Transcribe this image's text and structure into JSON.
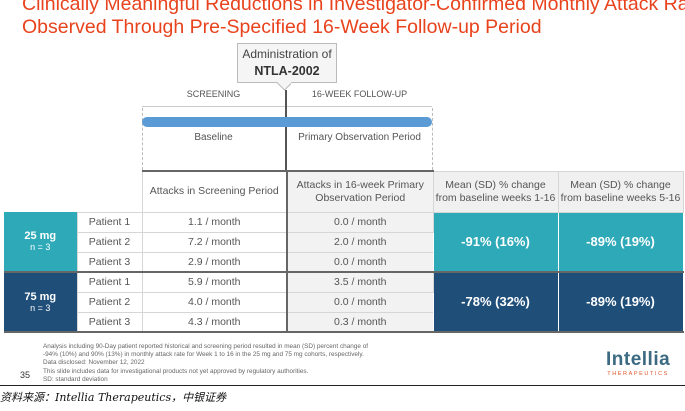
{
  "title": {
    "line1": "Clinically Meaningful Reductions in Investigator-Confirmed Monthly Attack Rate",
    "line2": "Observed Through Pre-Specified 16-Week Follow-up Period"
  },
  "callout": {
    "line1": "Administration of",
    "line2": "NTLA-2002"
  },
  "timeline": {
    "screening": "SCREENING",
    "followup": "16-WEEK FOLLOW-UP",
    "baseline": "Baseline",
    "primary": "Primary Observation Period"
  },
  "colors": {
    "title": "#e8431d",
    "teal": "#2ea9b8",
    "navy": "#1f4e79",
    "bar": "#5b9bd5"
  },
  "table": {
    "headers": [
      "Attacks in Screening Period",
      "Attacks in 16-week Primary Observation Period",
      "Mean (SD) % change from baseline weeks 1-16",
      "Mean (SD) % change from baseline weeks 5-16"
    ],
    "groups": [
      {
        "dose": "25 mg",
        "n": "n = 3",
        "mean1": "-91% (16%)",
        "mean2": "-89% (19%)",
        "rows": [
          [
            "Patient 1",
            "1.1 / month",
            "0.0 / month"
          ],
          [
            "Patient 2",
            "7.2 / month",
            "2.0 / month"
          ],
          [
            "Patient 3",
            "2.9 / month",
            "0.0 / month"
          ]
        ]
      },
      {
        "dose": "75 mg",
        "n": "n = 3",
        "mean1": "-78% (32%)",
        "mean2": "-89% (19%)",
        "rows": [
          [
            "Patient 1",
            "5.9 / month",
            "3.5 / month"
          ],
          [
            "Patient 2",
            "4.0 / month",
            "0.0 / month"
          ],
          [
            "Patient 3",
            "4.3 / month",
            "0.3 / month"
          ]
        ]
      }
    ]
  },
  "footnotes": [
    "Analysis including 90-Day patient reported historical and screening period resulted in mean (SD) percent change of",
    "-94% (10%) and 90% (13%) in monthly attack rate for Week 1 to 16 in the 25 mg and 75 mg cohorts, respectively.",
    "Data disclosed: November 12, 2022",
    "This slide includes data for investigational products not yet approved by regulatory authorities.",
    "SD: standard deviation"
  ],
  "page_number": "35",
  "logo": {
    "name": "Intellia",
    "sub": "THERAPEUTICS"
  },
  "source": "资料来源：Intellia Therapeutics，中银证券"
}
